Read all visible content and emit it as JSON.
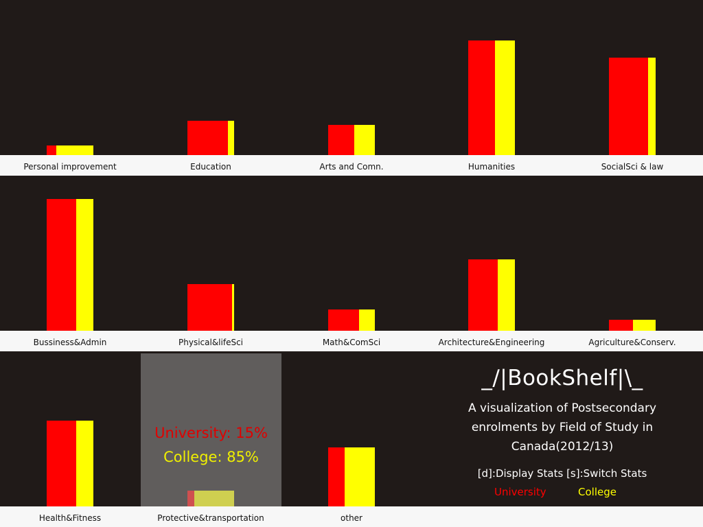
{
  "app": {
    "title": "_/|BookShelf|\\_",
    "subtitle_lines": [
      "A visualization of Postsecondary",
      "enrolments by Field of Study in",
      "Canada(2012/13)"
    ],
    "hint": "[d]:Display Stats [s]:Switch Stats",
    "legend": {
      "university": "University",
      "college": "College"
    }
  },
  "colors": {
    "university": "#ff0000",
    "college": "#ffff00",
    "background": "#201a18",
    "shelf": "#f7f7f7",
    "overlay": "#a0a0a0",
    "overlay_text_university": "#e00000",
    "overlay_text_college": "#f0f000"
  },
  "tooltip": {
    "category": "Protective&transportation",
    "university_text": "University: 15%",
    "college_text": "College: 85%"
  },
  "chart_data": {
    "type": "bar",
    "stacking": "side-by-side (bar width split by University/College share)",
    "series": [
      {
        "name": "University"
      },
      {
        "name": "College"
      }
    ],
    "categories": [
      "Personal improvement",
      "Education",
      "Arts and Comn.",
      "Humanities",
      "SocialSci & law",
      "Bussiness&Admin",
      "Physical&lifeSci",
      "Math&ComSci",
      "Architecture&Engineering",
      "Agriculture&Conserv.",
      "Health&Fitness",
      "Protective&transportation",
      "other"
    ],
    "height": [
      14,
      50,
      44,
      167,
      142,
      192,
      68,
      31,
      104,
      16,
      125,
      23,
      86
    ],
    "university_share": [
      0.2,
      0.87,
      0.56,
      0.58,
      0.84,
      0.63,
      0.95,
      0.66,
      0.63,
      0.51,
      0.63,
      0.15,
      0.35
    ],
    "ylim": [
      0,
      200
    ]
  }
}
